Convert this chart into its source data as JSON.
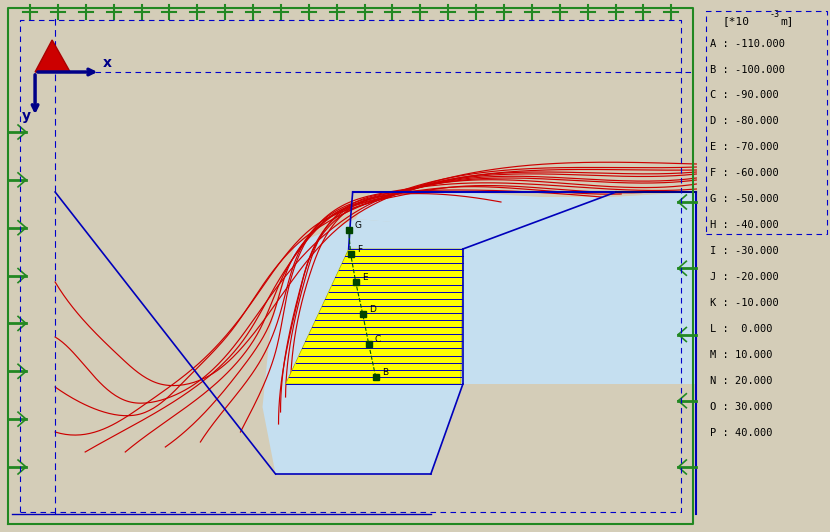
{
  "background_outer": "#d4cdb8",
  "background_inner": "#b8e8c8",
  "light_blue_region": "#c5dff0",
  "yellow_region": "#ffff00",
  "contour_color": "#cc0000",
  "blue_outline_color": "#0000bb",
  "green_marker_color": "#004400",
  "axis_color": "#000088",
  "dashed_border_color": "#0000cc",
  "figsize": [
    8.3,
    5.32
  ],
  "dpi": 100,
  "legend_labels": [
    "A",
    "B",
    "C",
    "D",
    "E",
    "F",
    "G",
    "H",
    "I",
    "J",
    "K",
    "L",
    "M",
    "N",
    "O",
    "P"
  ],
  "legend_values": [
    -110.0,
    -100.0,
    -90.0,
    -80.0,
    -70.0,
    -60.0,
    -50.0,
    -40.0,
    -30.0,
    -20.0,
    -10.0,
    0.0,
    10.0,
    20.0,
    30.0,
    40.0
  ]
}
